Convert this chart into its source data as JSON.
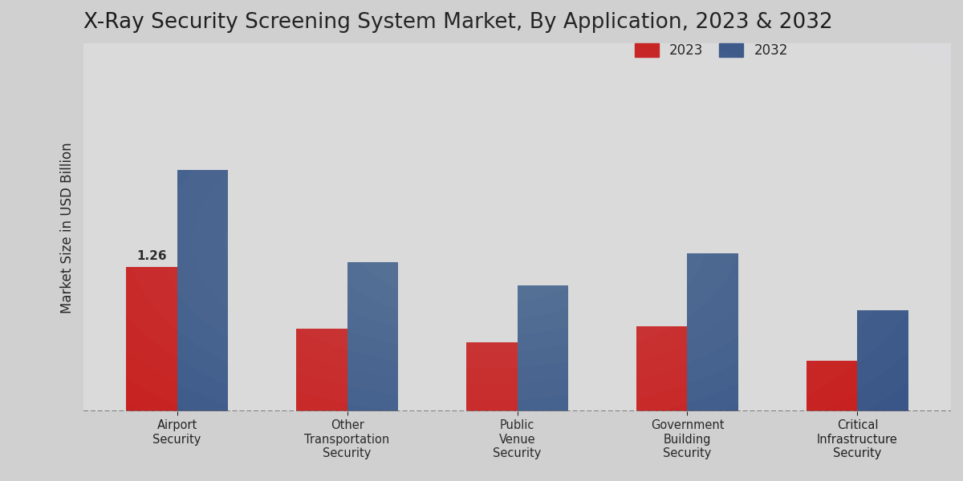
{
  "title": "X-Ray Security Screening System Market, By Application, 2023 & 2032",
  "ylabel": "Market Size in USD Billion",
  "categories": [
    "Airport\nSecurity",
    "Other\nTransportation\nSecurity",
    "Public\nVenue\nSecurity",
    "Government\nBuilding\nSecurity",
    "Critical\nInfrastructure\nSecurity"
  ],
  "values_2023": [
    1.26,
    0.72,
    0.6,
    0.74,
    0.44
  ],
  "values_2032": [
    2.1,
    1.3,
    1.1,
    1.38,
    0.88
  ],
  "color_2023": "#cc0000",
  "color_2032": "#1e3a7a",
  "annotation_value": "1.26",
  "annotation_index": 0,
  "bg_light": "#e8e8e8",
  "bg_dark": "#d0d0d0",
  "ylim": [
    0,
    3.2
  ],
  "bar_width": 0.3,
  "legend_labels": [
    "2023",
    "2032"
  ],
  "title_fontsize": 19,
  "axis_label_fontsize": 12,
  "tick_fontsize": 10.5,
  "legend_fontsize": 12,
  "annotation_fontsize": 11
}
